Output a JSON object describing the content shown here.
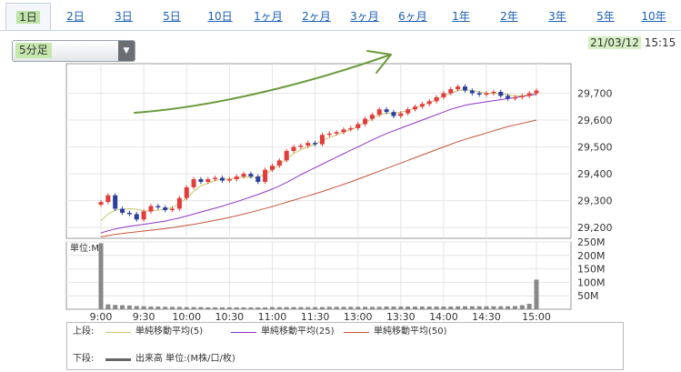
{
  "tabs": [
    {
      "label": "1日",
      "active": true
    },
    {
      "label": "2日"
    },
    {
      "label": "3日"
    },
    {
      "label": "5日"
    },
    {
      "label": "10日"
    },
    {
      "label": "1ヶ月"
    },
    {
      "label": "2ヶ月"
    },
    {
      "label": "3ヶ月"
    },
    {
      "label": "6ヶ月"
    },
    {
      "label": "1年"
    },
    {
      "label": "2年"
    },
    {
      "label": "3年"
    },
    {
      "label": "5年"
    },
    {
      "label": "10年"
    }
  ],
  "interval_select": {
    "value": "5分足"
  },
  "timestamp": {
    "date": "21/03/12",
    "time": "15:15"
  },
  "colors": {
    "up": "#e23b3b",
    "down": "#2a3f9e",
    "ma5": "#c4c76a",
    "ma25": "#8e36c4",
    "ma50": "#c4553a",
    "volume": "#888888"
  },
  "chart_data": [
    {
      "type": "candlestick",
      "x_ticks": [
        "9:00",
        "9:30",
        "10:00",
        "10:30",
        "11:00",
        "11:30",
        "13:00",
        "13:30",
        "14:00",
        "14:30",
        "15:00"
      ],
      "y_ticks": [
        "29,200",
        "29,300",
        "29,400",
        "29,500",
        "29,600",
        "29,700"
      ],
      "ylim": [
        29160,
        29810
      ],
      "close": [
        29295,
        29320,
        29270,
        29255,
        29250,
        29230,
        29260,
        29280,
        29275,
        29265,
        29270,
        29310,
        29350,
        29380,
        29370,
        29380,
        29385,
        29375,
        29380,
        29390,
        29400,
        29390,
        29370,
        29415,
        29430,
        29450,
        29485,
        29500,
        29505,
        29515,
        29510,
        29545,
        29550,
        29555,
        29565,
        29570,
        29585,
        29605,
        29620,
        29640,
        29630,
        29615,
        29625,
        29640,
        29650,
        29660,
        29670,
        29685,
        29700,
        29715,
        29725,
        29710,
        29700,
        29695,
        29700,
        29705,
        29690,
        29680,
        29685,
        29690,
        29700,
        29710
      ],
      "ma5": [
        29225,
        29250,
        29265,
        29268,
        29270,
        29268,
        29262,
        29262,
        29265,
        29268,
        29275,
        29290,
        29310,
        29335,
        29355,
        29365,
        29375,
        29380,
        29380,
        29385,
        29388,
        29388,
        29385,
        29400,
        29415,
        29435,
        29455,
        29475,
        29490,
        29500,
        29510,
        29525,
        29535,
        29545,
        29555,
        29565,
        29575,
        29590,
        29605,
        29620,
        29625,
        29625,
        29630,
        29635,
        29645,
        29655,
        29665,
        29675,
        29690,
        29700,
        29710,
        29712,
        29710,
        29705,
        29700,
        29700,
        29698,
        29694,
        29690,
        29690,
        29695,
        29700
      ],
      "ma25": [
        29180,
        29188,
        29195,
        29200,
        29205,
        29208,
        29212,
        29216,
        29220,
        29224,
        29230,
        29236,
        29243,
        29250,
        29258,
        29265,
        29272,
        29280,
        29288,
        29296,
        29305,
        29314,
        29323,
        29333,
        29343,
        29355,
        29368,
        29382,
        29397,
        29410,
        29423,
        29436,
        29449,
        29462,
        29475,
        29488,
        29500,
        29513,
        29526,
        29538,
        29550,
        29560,
        29570,
        29580,
        29590,
        29600,
        29610,
        29620,
        29630,
        29640,
        29648,
        29655,
        29660,
        29664,
        29668,
        29672,
        29676,
        29680,
        29684,
        29688,
        29692,
        29696
      ],
      "ma50": [
        29165,
        29170,
        29175,
        29178,
        29181,
        29184,
        29187,
        29190,
        29193,
        29196,
        29200,
        29204,
        29208,
        29212,
        29217,
        29222,
        29227,
        29232,
        29238,
        29244,
        29250,
        29257,
        29264,
        29271,
        29278,
        29286,
        29294,
        29302,
        29310,
        29318,
        29326,
        29334,
        29343,
        29352,
        29361,
        29370,
        29380,
        29390,
        29400,
        29410,
        29420,
        29430,
        29440,
        29450,
        29460,
        29470,
        29480,
        29490,
        29500,
        29510,
        29520,
        29528,
        29536,
        29544,
        29552,
        29560,
        29568,
        29576,
        29582,
        29588,
        29594,
        29600
      ]
    },
    {
      "type": "bar",
      "label": "単位:M",
      "y_ticks": [
        "250M",
        "200M",
        "150M",
        "100M",
        "50M"
      ],
      "ylim": [
        0,
        250
      ],
      "values": [
        245,
        18,
        16,
        15,
        14,
        12,
        11,
        10,
        10,
        9,
        9,
        9,
        8,
        8,
        8,
        7,
        7,
        7,
        7,
        7,
        7,
        7,
        7,
        7,
        8,
        8,
        8,
        8,
        8,
        8,
        8,
        8,
        9,
        9,
        9,
        9,
        9,
        9,
        9,
        9,
        10,
        10,
        10,
        10,
        10,
        10,
        10,
        10,
        10,
        10,
        11,
        11,
        11,
        11,
        11,
        11,
        11,
        11,
        12,
        15,
        20,
        110
      ]
    }
  ],
  "legend": {
    "upper_label": "上段:",
    "lower_label": "下段:",
    "ma5": "単純移動平均(5)",
    "ma25": "単純移動平均(25)",
    "ma50": "単純移動平均(50)",
    "volume": "出来高 単位:(M株/口/枚)"
  }
}
